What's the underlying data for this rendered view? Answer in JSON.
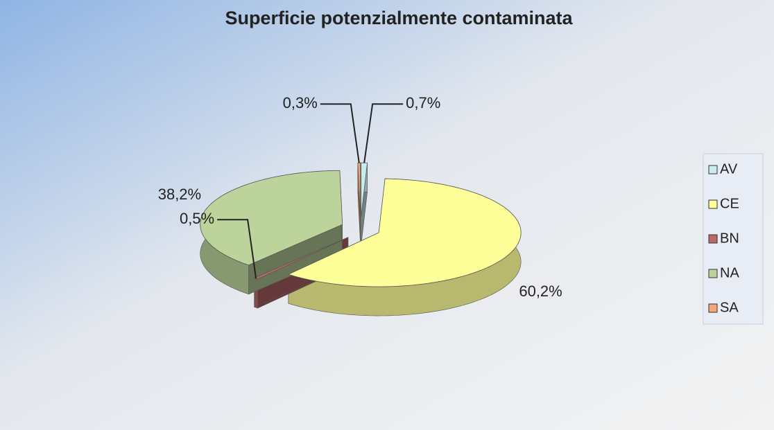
{
  "chart_data": {
    "type": "pie3d",
    "title": "Superficie potenzialmente contaminata",
    "categories": [
      "AV",
      "CE",
      "BN",
      "NA",
      "SA"
    ],
    "values": [
      0.7,
      60.2,
      0.5,
      38.2,
      0.3
    ],
    "value_labels": [
      "0,7%",
      "60,2%",
      "0,5%",
      "38,2%",
      "0,3%"
    ],
    "colors": [
      "#c8ecee",
      "#ffff99",
      "#b86868",
      "#bcd49c",
      "#f4a878"
    ],
    "legend": "right"
  }
}
